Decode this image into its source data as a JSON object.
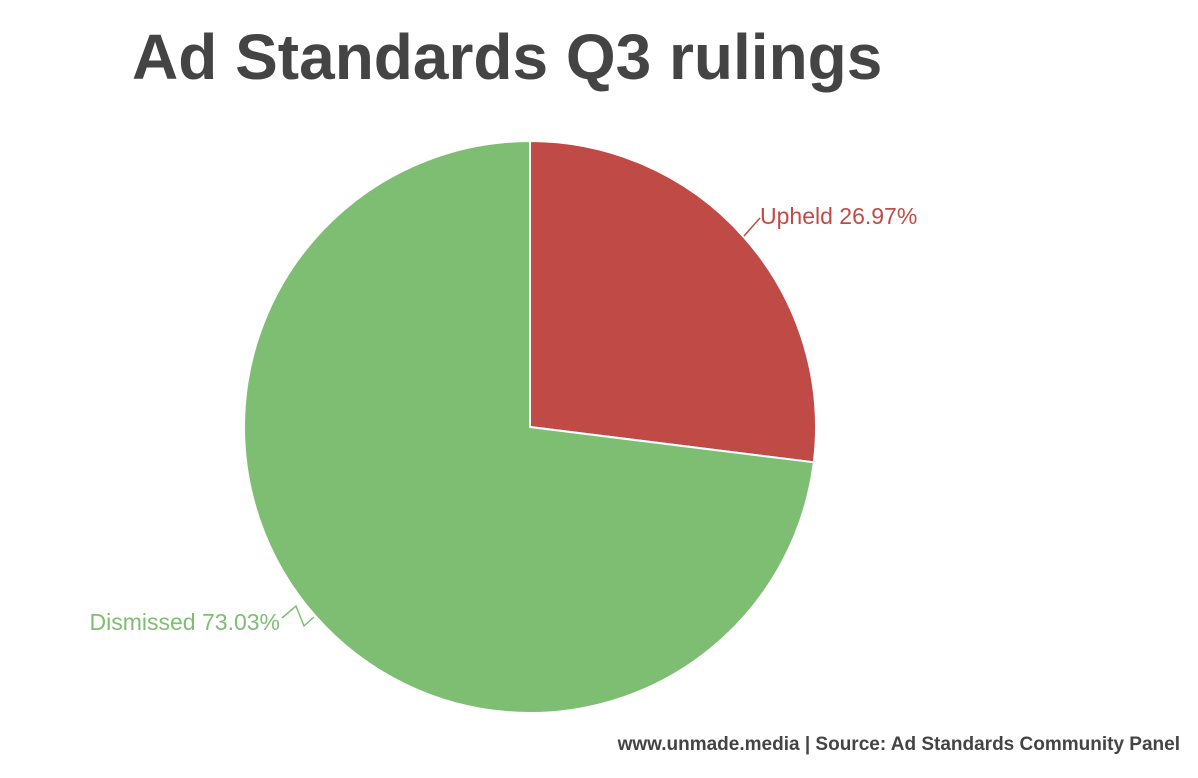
{
  "chart_data": {
    "type": "pie",
    "title": "Ad Standards Q3 rulings",
    "slices": [
      {
        "label": "Upheld",
        "value": 26.97,
        "display": "Upheld 26.97%",
        "color": "#c04b46"
      },
      {
        "label": "Dismissed",
        "value": 73.03,
        "display": "Dismissed 73.03%",
        "color": "#7ebe72"
      }
    ],
    "start_angle": "12 o'clock",
    "direction": "clockwise",
    "legend": "none (labels on slices)"
  },
  "footer": {
    "credit": "www.unmade.media | Source: Ad Standards Community Panel"
  }
}
